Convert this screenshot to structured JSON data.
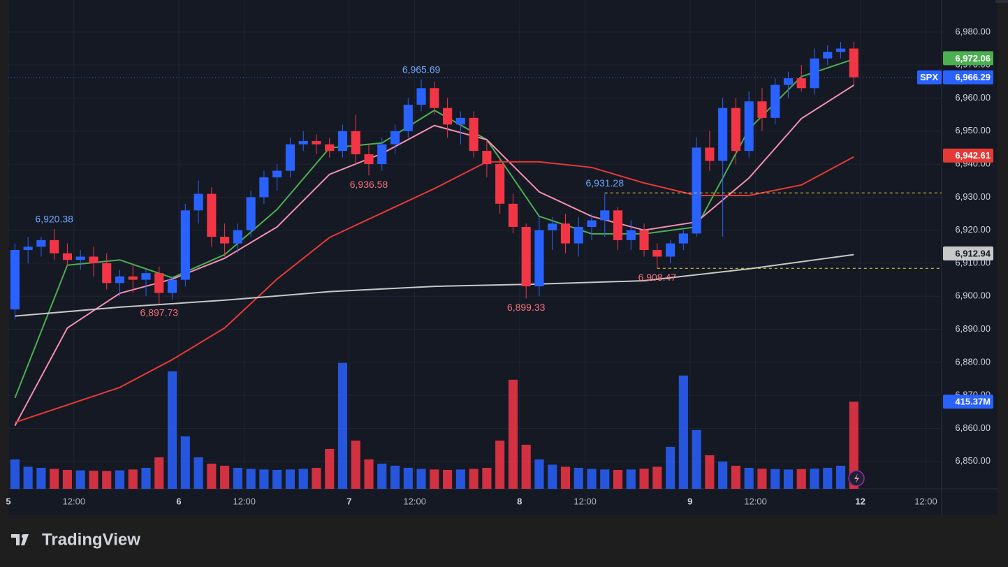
{
  "chart_data": {
    "type": "candlestick",
    "symbol": "SPX",
    "brand": "TradingView",
    "up_color": "#2962ff",
    "down_color": "#f23645",
    "grid": true,
    "open": [
      6896,
      6914,
      6915,
      6917,
      6913,
      6911,
      6912,
      6910,
      6904,
      6906,
      6905,
      6907,
      6901,
      6905,
      6926,
      6931,
      6918,
      6916,
      6920,
      6930,
      6936,
      6938,
      6946,
      6947,
      6946,
      6944,
      6950,
      6943,
      6940,
      6946,
      6950,
      6958,
      6963,
      6957,
      6952,
      6954,
      6944,
      6940,
      6928,
      6921,
      6903,
      6920,
      6922,
      6916,
      6921,
      6923,
      6926,
      6917,
      6920,
      6914,
      6912,
      6916,
      6919,
      6945,
      6941,
      6957,
      6944,
      6959,
      6954,
      6964,
      6966,
      6963,
      6972,
      6974,
      6975
    ],
    "high": [
      6916,
      6918,
      6918,
      6920.38,
      6916,
      6914,
      6915,
      6913,
      6908,
      6910,
      6908,
      6909,
      6906,
      6928,
      6935,
      6933,
      6922,
      6922,
      6932,
      6938,
      6940,
      6948,
      6950,
      6949,
      6948,
      6952,
      6955,
      6946,
      6948,
      6952,
      6960,
      6965.69,
      6965,
      6960,
      6956,
      6956,
      6947,
      6942,
      6931,
      6922,
      6924,
      6924,
      6925,
      6924,
      6925,
      6931.28,
      6927,
      6923,
      6922,
      6916,
      6917,
      6920,
      6948,
      6950,
      6960,
      6960,
      6962,
      6963,
      6966,
      6968,
      6970,
      6975,
      6976,
      6977,
      6977
    ],
    "low": [
      6893,
      6910,
      6912,
      6911,
      6909,
      6908,
      6906,
      6902,
      6900,
      6901,
      6900,
      6897.73,
      6899,
      6903,
      6922,
      6915,
      6912,
      6913,
      6918,
      6928,
      6932,
      6936,
      6944,
      6943,
      6942,
      6942,
      6940,
      6936.58,
      6938,
      6943,
      6948,
      6956,
      6955,
      6948,
      6946,
      6942,
      6936,
      6925,
      6919,
      6899.33,
      6900,
      6914,
      6913,
      6912,
      6917,
      6918,
      6914,
      6914,
      6912,
      6908.47,
      6910,
      6914,
      6918,
      6938,
      6918,
      6940,
      6942,
      6950,
      6952,
      6960,
      6962,
      6961,
      6970,
      6972,
      6964
    ],
    "close": [
      6914,
      6915,
      6917,
      6913,
      6911,
      6912,
      6910,
      6904,
      6906,
      6905,
      6907,
      6901,
      6905,
      6926,
      6931,
      6918,
      6916,
      6920,
      6930,
      6936,
      6938,
      6946,
      6947,
      6946,
      6944,
      6950,
      6943,
      6940,
      6946,
      6950,
      6958,
      6963,
      6957,
      6952,
      6954,
      6944,
      6940,
      6928,
      6921,
      6903,
      6920,
      6922,
      6916,
      6921,
      6923,
      6926,
      6917,
      6920,
      6914,
      6912,
      6916,
      6919,
      6945,
      6941,
      6957,
      6944,
      6959,
      6954,
      6964,
      6966,
      6963,
      6972,
      6974,
      6975,
      6966.29
    ],
    "volume": [
      140,
      105,
      100,
      95,
      90,
      88,
      86,
      85,
      88,
      92,
      100,
      150,
      560,
      250,
      150,
      120,
      110,
      100,
      95,
      92,
      90,
      92,
      95,
      100,
      190,
      600,
      230,
      140,
      120,
      110,
      100,
      95,
      92,
      90,
      92,
      95,
      100,
      230,
      520,
      210,
      140,
      115,
      105,
      100,
      95,
      92,
      90,
      92,
      96,
      105,
      200,
      540,
      280,
      160,
      130,
      110,
      100,
      96,
      94,
      92,
      94,
      96,
      100,
      110,
      415.37
    ],
    "volume_tag": {
      "value": 415.37,
      "label": "415.37M"
    },
    "price_tag": {
      "value": 6966.29,
      "label": "6,966.29"
    },
    "vlim": [
      0,
      2330
    ],
    "xlim": [
      0,
      71.2
    ],
    "ylim": [
      6841.7,
      6989.7
    ],
    "xticks": [
      {
        "value": 0,
        "label": "5"
      },
      {
        "value": 5,
        "label": "12:00"
      },
      {
        "value": 13,
        "label": "6"
      },
      {
        "value": 18,
        "label": "12:00"
      },
      {
        "value": 26,
        "label": "7"
      },
      {
        "value": 31,
        "label": "12:00"
      },
      {
        "value": 39,
        "label": "8"
      },
      {
        "value": 44,
        "label": "12:00"
      },
      {
        "value": 52,
        "label": "9"
      },
      {
        "value": 57,
        "label": "12:00"
      },
      {
        "value": 65,
        "label": "12"
      },
      {
        "value": 70,
        "label": "12:00"
      }
    ],
    "yticks": [
      {
        "value": 6850,
        "label": "6,850.00"
      },
      {
        "value": 6860,
        "label": "6,860.00"
      },
      {
        "value": 6870,
        "label": "6,870.00"
      },
      {
        "value": 6880,
        "label": "6,880.00"
      },
      {
        "value": 6890,
        "label": "6,890.00"
      },
      {
        "value": 6900,
        "label": "6,900.00"
      },
      {
        "value": 6910,
        "label": "6,910.00"
      },
      {
        "value": 6920,
        "label": "6,920.00"
      },
      {
        "value": 6930,
        "label": "6,930.00"
      },
      {
        "value": 6940,
        "label": "6,940.00"
      },
      {
        "value": 6950,
        "label": "6,950.00"
      },
      {
        "value": 6960,
        "label": "6,960.00"
      },
      {
        "value": 6970,
        "label": "6,970.00"
      },
      {
        "value": 6980,
        "label": "6,980.00"
      }
    ],
    "series": [
      {
        "color": "#4caf50",
        "x": [
          0,
          4,
          8,
          12,
          16,
          20,
          24,
          28,
          32,
          36,
          40,
          44,
          48,
          52,
          56,
          60,
          64
        ],
        "values": [
          6869.2,
          6909.4,
          6911,
          6905.6,
          6912.6,
          6926.3,
          6944.9,
          6946.4,
          6956.3,
          6947.4,
          6924.2,
          6918.9,
          6918.9,
          6921,
          6950.6,
          6966.5,
          6971.8
        ],
        "tag": {
          "value": 6972.06,
          "label": "6,972.06"
        }
      },
      {
        "color": "#f48fb1",
        "x": [
          0,
          4,
          8,
          12,
          16,
          20,
          24,
          28,
          32,
          36,
          40,
          44,
          48,
          52,
          56,
          60,
          64
        ],
        "values": [
          6860.8,
          6890.4,
          6900.9,
          6905.2,
          6911.5,
          6921,
          6936.9,
          6943.2,
          6951.7,
          6947.4,
          6931.6,
          6924.2,
          6920,
          6922.5,
          6935.8,
          6953.8,
          6963.9
        ]
      },
      {
        "color": "#e53935",
        "x": [
          0,
          4,
          8,
          12,
          16,
          20,
          24,
          28,
          32,
          36,
          40,
          44,
          48,
          52,
          56,
          60,
          64
        ],
        "values": [
          6861.8,
          6867.1,
          6872.4,
          6880.8,
          6890.4,
          6905.2,
          6917.8,
          6925.2,
          6932.6,
          6940.7,
          6940.7,
          6939,
          6934.3,
          6930.5,
          6930.5,
          6933.7,
          6942.2
        ],
        "tag": {
          "value": 6942.61,
          "label": "6,942.61"
        }
      },
      {
        "color": "#c8c8c8",
        "x": [
          0,
          8,
          16,
          24,
          32,
          40,
          48,
          56,
          64
        ],
        "values": [
          6894,
          6896.7,
          6898.8,
          6901.4,
          6903,
          6903.7,
          6904.7,
          6908.3,
          6912.6
        ],
        "tag": {
          "value": 6912.94,
          "label": "6,912.94"
        }
      }
    ],
    "annotations": [
      {
        "label": "6,920.38",
        "value": 6920.38,
        "x": 3,
        "kind": "high"
      },
      {
        "label": "6,897.73",
        "value": 6897.73,
        "x": 11,
        "kind": "low"
      },
      {
        "label": "6,965.69",
        "value": 6965.69,
        "x": 31,
        "kind": "high"
      },
      {
        "label": "6,936.58",
        "value": 6936.58,
        "x": 27,
        "kind": "low"
      },
      {
        "label": "6,899.33",
        "value": 6899.33,
        "x": 39,
        "kind": "low"
      },
      {
        "label": "6,931.28",
        "value": 6931.28,
        "x": 45,
        "kind": "high",
        "dashed": true
      },
      {
        "label": "6,908.47",
        "value": 6908.47,
        "x": 49,
        "kind": "low",
        "dashed": true
      }
    ]
  }
}
